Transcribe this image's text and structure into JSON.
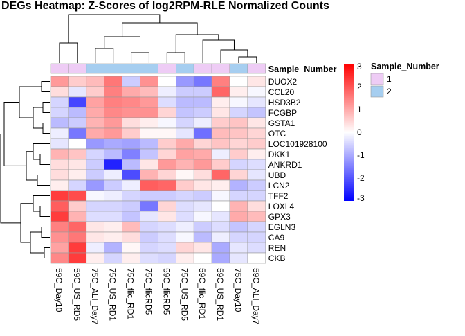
{
  "chart_data": {
    "type": "heatmap",
    "title": "DEGs Heatmap: Z-Scores of log2RPM-RLE Normalized Counts",
    "columns": [
      "59C_Day10",
      "59C_US_RD5",
      "75C_ALI_Day7",
      "75C_US_RD1",
      "75C_flic_RD1",
      "75C_flicRD5",
      "59C_flicRD5",
      "75C_US_RD5",
      "59C_flic_RD1",
      "59C_US_RD1",
      "75C_Day10",
      "59C_ALI_Day7"
    ],
    "rows": [
      "DUOX2",
      "CCL20",
      "HSD3B2",
      "FCGBP",
      "GSTA1",
      "OTC",
      "LOC101928100",
      "DKK1",
      "ANKRD1",
      "UBD",
      "LCN2",
      "TFF2",
      "LOXL4",
      "GPX3",
      "EGLN3",
      "CA9",
      "REN",
      "CKB"
    ],
    "values": [
      [
        1.2,
        0.6,
        0.8,
        1.6,
        -0.6,
        1.3,
        0.0,
        -1.2,
        -1.6,
        1.5,
        0.0,
        0.3
      ],
      [
        0.4,
        -0.3,
        0.6,
        1.5,
        1.0,
        0.8,
        -0.2,
        -0.6,
        -0.6,
        1.8,
        0.2,
        -0.1
      ],
      [
        -0.5,
        -2.2,
        1.1,
        1.5,
        1.4,
        1.2,
        -0.4,
        -0.8,
        -0.8,
        0.2,
        -0.1,
        -0.3
      ],
      [
        -0.5,
        -0.8,
        1.0,
        1.4,
        1.3,
        1.3,
        0.5,
        -0.7,
        -0.6,
        0.3,
        -0.5,
        -0.7
      ],
      [
        -0.8,
        -0.6,
        0.9,
        1.2,
        0.4,
        0.2,
        -0.1,
        -0.5,
        -0.2,
        0.6,
        0.7,
        0.3
      ],
      [
        -0.2,
        -1.6,
        1.0,
        1.2,
        0.6,
        0.1,
        0.1,
        -0.3,
        -1.7,
        0.8,
        0.7,
        0.5
      ],
      [
        -0.3,
        0.0,
        -1.2,
        -1.0,
        -1.1,
        -0.8,
        0.6,
        1.0,
        0.5,
        0.7,
        0.5,
        0.6
      ],
      [
        0.9,
        0.7,
        -0.5,
        -0.8,
        -1.5,
        -0.7,
        0.5,
        1.1,
        1.0,
        -0.2,
        0.6,
        0.2
      ],
      [
        0.4,
        0.3,
        -0.6,
        -2.6,
        -0.8,
        0.3,
        1.2,
        0.9,
        1.2,
        0.6,
        -0.5,
        -0.4
      ],
      [
        0.4,
        0.2,
        -0.6,
        -0.2,
        -2.1,
        0.9,
        0.5,
        0.1,
        0.4,
        1.8,
        0.5,
        -0.3
      ],
      [
        0.2,
        -0.5,
        -1.2,
        -0.6,
        -0.2,
        1.9,
        1.8,
        0.6,
        0.3,
        0.2,
        -0.9,
        -0.6
      ],
      [
        2.3,
        2.1,
        -0.1,
        -0.2,
        -0.5,
        -0.6,
        -0.6,
        -0.5,
        -0.6,
        -0.1,
        -0.5,
        -0.5
      ],
      [
        1.9,
        0.6,
        -0.5,
        -0.5,
        -0.6,
        -1.6,
        0.5,
        -0.4,
        -0.3,
        0.0,
        0.9,
        0.4
      ],
      [
        2.3,
        0.9,
        -0.4,
        -0.4,
        -0.7,
        -0.3,
        0.3,
        -0.4,
        -0.1,
        -0.3,
        1.0,
        0.8
      ],
      [
        1.5,
        1.8,
        0.3,
        0.2,
        0.8,
        -0.5,
        -0.4,
        -0.2,
        -0.6,
        -0.4,
        -0.7,
        -0.5
      ],
      [
        1.3,
        1.6,
        0.3,
        0.2,
        0.4,
        -0.6,
        -0.4,
        -0.1,
        -0.8,
        -0.2,
        -0.5,
        -0.5
      ],
      [
        1.1,
        2.3,
        -0.2,
        -0.9,
        0.1,
        -0.5,
        -0.4,
        0.5,
        0.3,
        -1.0,
        -0.3,
        -0.4
      ],
      [
        1.4,
        2.3,
        0.2,
        -0.5,
        0.2,
        -0.4,
        -0.5,
        0.2,
        0.0,
        -1.0,
        -0.3,
        0.0
      ]
    ],
    "annotation": {
      "name": "Sample_Number",
      "values": [
        1,
        1,
        2,
        2,
        2,
        2,
        1,
        2,
        1,
        1,
        2,
        1
      ],
      "legend_title": "Sample_Number",
      "legend": [
        {
          "label": "1",
          "color": "#EECCF5"
        },
        {
          "label": "2",
          "color": "#A6CEF0"
        }
      ]
    },
    "colorbar": {
      "range": [
        -3,
        3
      ],
      "ticks": [
        "-3",
        "-2",
        "-1",
        "0",
        "1",
        "2",
        "3"
      ],
      "low_color": "#0000FF",
      "mid_color": "#FFFFFF",
      "high_color": "#FF0000"
    }
  }
}
